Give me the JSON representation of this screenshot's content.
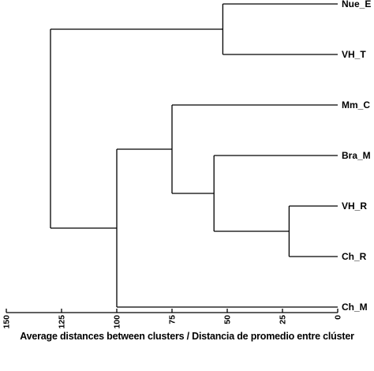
{
  "chart_data": {
    "type": "dendrogram",
    "x_axis": {
      "label": "Average distances between clusters / Distancia de promedio entre clúster",
      "range": [
        150,
        0
      ],
      "ticks": [
        150,
        125,
        100,
        75,
        50,
        25,
        0
      ],
      "tick_labels": [
        "150",
        "125",
        "100",
        "75",
        "50",
        "25",
        "0"
      ]
    },
    "leaves": [
      "Nue_E",
      "VH_T",
      "Mm_C",
      "Bra_M",
      "VH_R",
      "Ch_R",
      "Ch_M"
    ],
    "merges": [
      {
        "id": "n1",
        "children": [
          "VH_R",
          "Ch_R"
        ],
        "height": 22
      },
      {
        "id": "n2",
        "children": [
          "Bra_M",
          "n1"
        ],
        "height": 56
      },
      {
        "id": "n3",
        "children": [
          "Mm_C",
          "n2"
        ],
        "height": 75
      },
      {
        "id": "n4",
        "children": [
          "n3",
          "Ch_M"
        ],
        "height": 100
      },
      {
        "id": "n5",
        "children": [
          "Nue_E",
          "VH_T"
        ],
        "height": 52
      },
      {
        "id": "n6",
        "children": [
          "n5",
          "n4"
        ],
        "height": 130
      }
    ]
  }
}
